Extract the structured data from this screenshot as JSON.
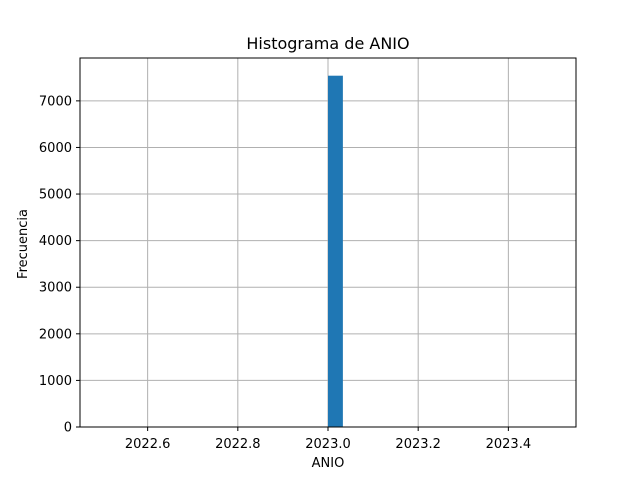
{
  "chart_data": {
    "type": "bar",
    "title": "Histograma de ANIO",
    "xlabel": "ANIO",
    "ylabel": "Frecuencia",
    "xlim": [
      2022.45,
      2023.55
    ],
    "ylim": [
      0,
      7920
    ],
    "xticks": [
      2022.6,
      2022.8,
      2023.0,
      2023.2,
      2023.4
    ],
    "xtick_labels": [
      "2022.6",
      "2022.8",
      "2023.0",
      "2023.2",
      "2023.4"
    ],
    "yticks": [
      0,
      1000,
      2000,
      3000,
      4000,
      5000,
      6000,
      7000
    ],
    "ytick_labels": [
      "0",
      "1000",
      "2000",
      "3000",
      "4000",
      "5000",
      "6000",
      "7000"
    ],
    "grid": true,
    "bars": [
      {
        "x0": 2023.0,
        "x1": 2023.033,
        "value": 7540
      }
    ],
    "colors": {
      "bar": "#1f77b4",
      "grid": "#b0b0b0",
      "axes": "#000000"
    }
  }
}
